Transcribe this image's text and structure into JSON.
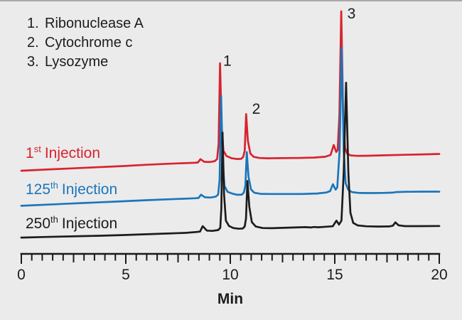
{
  "page": {
    "background": "#ebebeb",
    "top_border_color": "#a9a9a9",
    "text_color": "#1c1c1c"
  },
  "analyte_legend": {
    "items": [
      {
        "num": "1.",
        "name": "Ribonuclease A"
      },
      {
        "num": "2.",
        "name": "Cytochrome c"
      },
      {
        "num": "3.",
        "name": "Lysozyme"
      }
    ]
  },
  "chart_data": {
    "type": "line",
    "title": "",
    "xlabel": "Min",
    "ylabel": "",
    "grid": false,
    "x_axis": {
      "min": 0,
      "max": 20,
      "major_step": 5,
      "medium_step": 2.5,
      "minor_step": 0.5,
      "major_tick_labels": [
        "0",
        "5",
        "10",
        "15",
        "20"
      ],
      "axis_color": "#1a1a1a"
    },
    "y_axis": {
      "visible": false,
      "units": "response, arbitrary units (peak 3 height = ~100 u); traces vertically offset for display"
    },
    "peak_annotations": [
      {
        "label": "1",
        "analyte": "Ribonuclease A",
        "t_min": 9.86,
        "u": 134.0
      },
      {
        "label": "2",
        "analyte": "Cytochrome c",
        "t_min": 11.24,
        "u": 100.7
      },
      {
        "label": "3",
        "analyte": "Lysozyme",
        "t_min": 15.8,
        "u": 166.7
      }
    ],
    "series": [
      {
        "name": "1st Injection",
        "label": {
          "num": "1",
          "ord": "st",
          "word": "Injection"
        },
        "color": "#d9232e",
        "display_offset_u": 66,
        "peaks": [
          {
            "analyte": "Ribonuclease A",
            "t_min": 9.51,
            "height_u": 66
          },
          {
            "analyte": "Cytochrome c",
            "t_min": 10.76,
            "height_u": 31
          },
          {
            "analyte": "Lysozyme",
            "t_min": 15.31,
            "height_u": 102
          }
        ],
        "points": [
          [
            0,
            -8.4
          ],
          [
            1.2,
            -7.6
          ],
          [
            2.4,
            -6.8
          ],
          [
            3.6,
            -6.0
          ],
          [
            4.8,
            -5.2
          ],
          [
            6,
            -4.3
          ],
          [
            7,
            -3.6
          ],
          [
            7.9,
            -3.1
          ],
          [
            8.3,
            -2.9
          ],
          [
            8.45,
            -2.7
          ],
          [
            8.57,
            -0.4
          ],
          [
            8.75,
            -2.2
          ],
          [
            9.0,
            -2.4
          ],
          [
            9.25,
            -1.8
          ],
          [
            9.37,
            -0.3
          ],
          [
            9.44,
            10
          ],
          [
            9.51,
            66
          ],
          [
            9.58,
            24
          ],
          [
            9.67,
            5.5
          ],
          [
            9.82,
            1.8
          ],
          [
            10.05,
            0.3
          ],
          [
            10.3,
            -0.3
          ],
          [
            10.52,
            -0.2
          ],
          [
            10.62,
            1.2
          ],
          [
            10.69,
            5.5
          ],
          [
            10.76,
            30.8
          ],
          [
            10.84,
            12.5
          ],
          [
            10.96,
            3.5
          ],
          [
            11.12,
            1.2
          ],
          [
            11.4,
            0.4
          ],
          [
            11.8,
            0.2
          ],
          [
            12.3,
            0.3
          ],
          [
            13.2,
            0.4
          ],
          [
            14.0,
            0.7
          ],
          [
            14.55,
            1.3
          ],
          [
            14.8,
            2.5
          ],
          [
            14.95,
            9.4
          ],
          [
            15.07,
            4.6
          ],
          [
            15.14,
            6
          ],
          [
            15.22,
            30
          ],
          [
            15.31,
            102
          ],
          [
            15.4,
            30
          ],
          [
            15.49,
            7.5
          ],
          [
            15.6,
            3.2
          ],
          [
            15.78,
            2.2
          ],
          [
            16.1,
            1.9
          ],
          [
            16.6,
            2.0
          ],
          [
            17.4,
            2.3
          ],
          [
            18.3,
            2.6
          ],
          [
            19.2,
            2.9
          ],
          [
            20,
            3.2
          ]
        ]
      },
      {
        "name": "125th Injection",
        "label": {
          "num": "125",
          "ord": "th",
          "word": "Injection"
        },
        "color": "#1b76bb",
        "display_offset_u": 41.5,
        "peaks": [
          {
            "analyte": "Ribonuclease A",
            "t_min": 9.56,
            "height_u": 68
          },
          {
            "analyte": "Cytochrome c",
            "t_min": 10.79,
            "height_u": 29
          },
          {
            "analyte": "Lysozyme",
            "t_min": 15.33,
            "height_u": 101.5
          }
        ],
        "points": [
          [
            0,
            -8.2
          ],
          [
            1.2,
            -7.4
          ],
          [
            2.4,
            -6.6
          ],
          [
            3.6,
            -5.9
          ],
          [
            4.8,
            -5.1
          ],
          [
            6,
            -4.3
          ],
          [
            7,
            -3.7
          ],
          [
            7.9,
            -3.2
          ],
          [
            8.3,
            -3.0
          ],
          [
            8.48,
            -2.8
          ],
          [
            8.6,
            -0.5
          ],
          [
            8.78,
            -2.3
          ],
          [
            9.05,
            -2.5
          ],
          [
            9.3,
            -1.9
          ],
          [
            9.42,
            -0.4
          ],
          [
            9.49,
            10
          ],
          [
            9.56,
            68
          ],
          [
            9.63,
            25
          ],
          [
            9.72,
            5.5
          ],
          [
            9.87,
            1.5
          ],
          [
            10.1,
            0.2
          ],
          [
            10.35,
            -0.6
          ],
          [
            10.56,
            -0.4
          ],
          [
            10.65,
            1.0
          ],
          [
            10.72,
            5.5
          ],
          [
            10.79,
            29
          ],
          [
            10.87,
            12
          ],
          [
            10.99,
            3.2
          ],
          [
            11.15,
            0.8
          ],
          [
            11.45,
            0.1
          ],
          [
            11.9,
            0.0
          ],
          [
            12.5,
            0.0
          ],
          [
            13.4,
            0.0
          ],
          [
            14.15,
            0.3
          ],
          [
            14.6,
            1.0
          ],
          [
            14.78,
            2.0
          ],
          [
            14.91,
            6.8
          ],
          [
            15.04,
            3.0
          ],
          [
            15.12,
            4.5
          ],
          [
            15.23,
            30
          ],
          [
            15.33,
            101.5
          ],
          [
            15.43,
            30
          ],
          [
            15.52,
            7.5
          ],
          [
            15.64,
            3.0
          ],
          [
            15.82,
            1.3
          ],
          [
            16.15,
            0.7
          ],
          [
            16.7,
            0.6
          ],
          [
            17.3,
            0.7
          ],
          [
            17.75,
            0.9
          ],
          [
            17.95,
            1.3
          ],
          [
            18.4,
            1.5
          ],
          [
            19.2,
            1.6
          ],
          [
            20,
            1.6
          ]
        ]
      },
      {
        "name": "250th Injection",
        "label": {
          "num": "250",
          "ord": "th",
          "word": "Injection"
        },
        "color": "#1c1c1c",
        "display_offset_u": 16.5,
        "peaks": [
          {
            "analyte": "Ribonuclease A",
            "t_min": 9.63,
            "height_u": 67.5
          },
          {
            "analyte": "Cytochrome c",
            "t_min": 10.82,
            "height_u": 34
          },
          {
            "analyte": "Lysozyme",
            "t_min": 15.54,
            "height_u": 102
          }
        ],
        "points": [
          [
            0,
            -5.2
          ],
          [
            1.2,
            -4.8
          ],
          [
            2.4,
            -4.4
          ],
          [
            3.6,
            -4.0
          ],
          [
            4.8,
            -3.5
          ],
          [
            6,
            -2.9
          ],
          [
            7,
            -2.4
          ],
          [
            7.9,
            -1.9
          ],
          [
            8.35,
            -1.4
          ],
          [
            8.55,
            -1.1
          ],
          [
            8.68,
            2.7
          ],
          [
            8.88,
            -0.4
          ],
          [
            9.15,
            -0.6
          ],
          [
            9.42,
            0.0
          ],
          [
            9.52,
            1.5
          ],
          [
            9.57,
            15
          ],
          [
            9.63,
            67.5
          ],
          [
            9.7,
            25
          ],
          [
            9.79,
            6.5
          ],
          [
            9.94,
            2.8
          ],
          [
            10.15,
            1.4
          ],
          [
            10.42,
            0.9
          ],
          [
            10.6,
            1.1
          ],
          [
            10.69,
            2.5
          ],
          [
            10.75,
            8
          ],
          [
            10.82,
            34
          ],
          [
            10.91,
            16
          ],
          [
            11.03,
            5.5
          ],
          [
            11.22,
            2.4
          ],
          [
            11.55,
            1.4
          ],
          [
            12.0,
            1.3
          ],
          [
            12.8,
            1.7
          ],
          [
            13.6,
            2.0
          ],
          [
            13.85,
            1.8
          ],
          [
            14.0,
            2.1
          ],
          [
            14.2,
            1.9
          ],
          [
            14.6,
            2.3
          ],
          [
            14.9,
            2.6
          ],
          [
            15.08,
            6.5
          ],
          [
            15.2,
            3.8
          ],
          [
            15.32,
            6.5
          ],
          [
            15.43,
            40
          ],
          [
            15.54,
            102
          ],
          [
            15.65,
            40
          ],
          [
            15.75,
            12
          ],
          [
            15.88,
            5.0
          ],
          [
            16.1,
            3.2
          ],
          [
            16.5,
            2.6
          ],
          [
            17.1,
            2.4
          ],
          [
            17.6,
            2.5
          ],
          [
            17.78,
            3.0
          ],
          [
            17.9,
            5.3
          ],
          [
            18.05,
            3.3
          ],
          [
            18.35,
            2.7
          ],
          [
            19.1,
            2.7
          ],
          [
            20,
            2.8
          ]
        ]
      }
    ]
  }
}
